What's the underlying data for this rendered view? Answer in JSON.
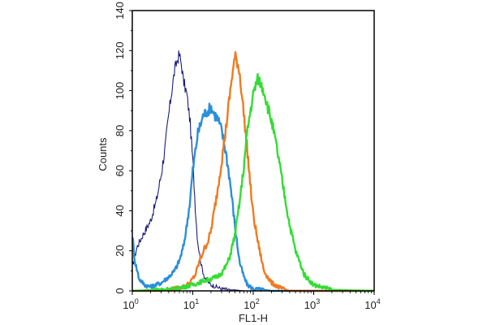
{
  "chart_data": {
    "type": "line",
    "xlabel": "FL1-H",
    "ylabel": "Counts",
    "xscale": "log",
    "xlim": [
      1,
      10000
    ],
    "ylim": [
      0,
      140
    ],
    "yticks": [
      "0",
      "20",
      "40",
      "60",
      "80",
      "100",
      "120",
      "140"
    ],
    "xticks": [
      {
        "base": "10",
        "exp": "0"
      },
      {
        "base": "10",
        "exp": "1"
      },
      {
        "base": "10",
        "exp": "2"
      },
      {
        "base": "10",
        "exp": "3"
      },
      {
        "base": "10",
        "exp": "4"
      }
    ],
    "grid": false,
    "series": [
      {
        "color": "#1c1c7a",
        "stroke": 1.1,
        "x": [
          1,
          1.2,
          1.5,
          2,
          2.5,
          3,
          3.5,
          4,
          4.5,
          5,
          5.5,
          6,
          6.5,
          7,
          8,
          9,
          10,
          11,
          12,
          14,
          16,
          20,
          25,
          30,
          40,
          50,
          70,
          100,
          200,
          1000,
          10000
        ],
        "y": [
          12,
          22,
          28,
          35,
          45,
          58,
          72,
          88,
          100,
          110,
          115,
          118,
          113,
          105,
          98,
          85,
          65,
          42,
          25,
          12,
          6,
          3,
          2,
          1,
          0.5,
          0.5,
          0,
          0,
          0,
          0,
          0
        ]
      },
      {
        "color": "#2b8fd8",
        "stroke": 2.4,
        "x": [
          1,
          1.1,
          1.3,
          1.6,
          2,
          3,
          4,
          5,
          6,
          7,
          8,
          9,
          10,
          12,
          15,
          18,
          20,
          23,
          26,
          30,
          35,
          40,
          45,
          50,
          55,
          60,
          70,
          80,
          100,
          150,
          200,
          10000
        ],
        "y": [
          28,
          15,
          6,
          3,
          2,
          4,
          7,
          10,
          15,
          22,
          33,
          45,
          60,
          78,
          88,
          90,
          92,
          88,
          86,
          80,
          70,
          58,
          45,
          32,
          22,
          14,
          7,
          3,
          1,
          0.5,
          0,
          0
        ]
      },
      {
        "color": "#f07a20",
        "stroke": 2.4,
        "x": [
          1,
          3,
          5,
          7,
          9,
          11,
          13,
          15,
          18,
          20,
          25,
          30,
          35,
          40,
          45,
          50,
          55,
          60,
          70,
          80,
          90,
          100,
          120,
          150,
          200,
          300,
          400,
          10000
        ],
        "y": [
          0,
          0,
          1,
          2,
          4,
          8,
          15,
          20,
          25,
          30,
          48,
          65,
          80,
          95,
          108,
          117,
          114,
          108,
          88,
          70,
          52,
          38,
          24,
          10,
          4,
          1,
          0,
          0
        ]
      },
      {
        "color": "#33dd33",
        "stroke": 2.4,
        "x": [
          1,
          5,
          10,
          15,
          20,
          25,
          30,
          35,
          40,
          50,
          60,
          70,
          80,
          90,
          100,
          110,
          120,
          130,
          150,
          170,
          200,
          250,
          300,
          400,
          500,
          700,
          1000,
          2000,
          10000
        ],
        "y": [
          0,
          1,
          3,
          5,
          6,
          7,
          9,
          12,
          16,
          28,
          45,
          62,
          80,
          90,
          98,
          103,
          106,
          104,
          100,
          93,
          85,
          70,
          55,
          33,
          20,
          8,
          3,
          0.5,
          0
        ]
      }
    ]
  }
}
